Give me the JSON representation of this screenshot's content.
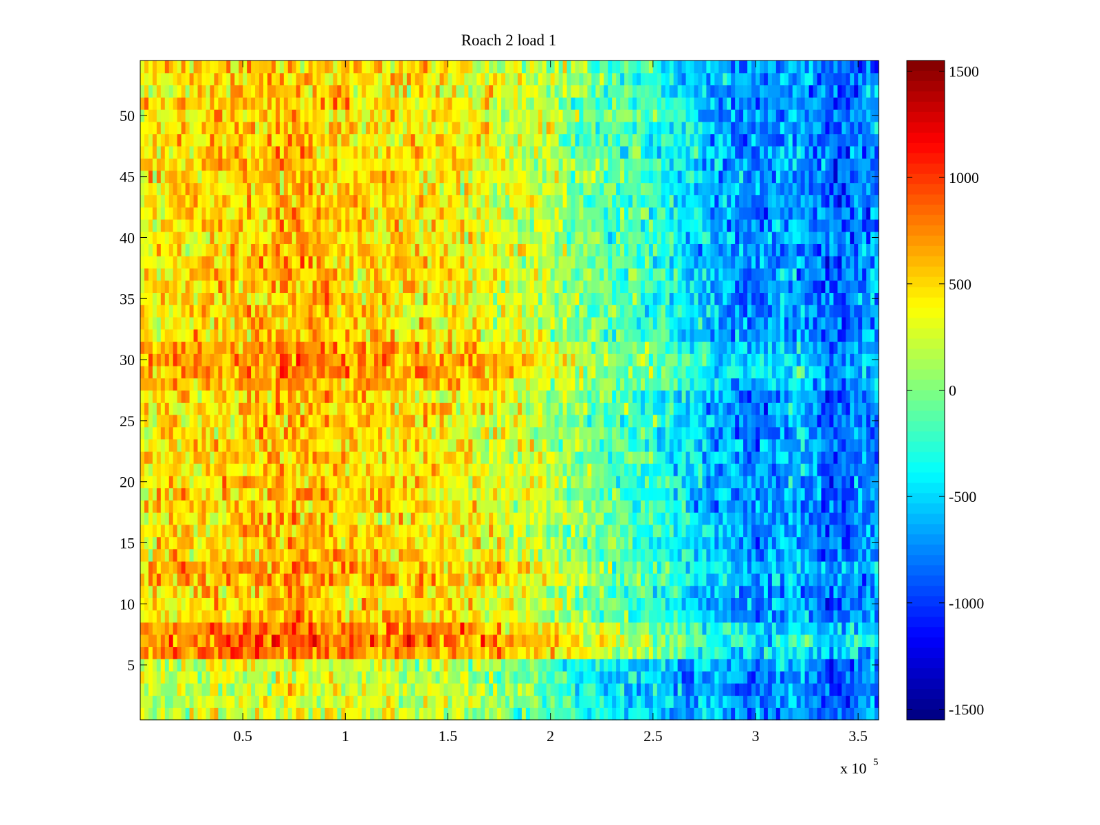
{
  "chart_data": {
    "type": "heatmap",
    "title": "Roach 2 load 1",
    "xlabel": "",
    "ylabel": "",
    "x_exponent_label": {
      "base": "x 10",
      "exponent": "5"
    },
    "xlim": [
      0,
      360000
    ],
    "ylim": [
      0.5,
      54.5
    ],
    "x_ticks": [
      {
        "value": 50000,
        "label": "0.5"
      },
      {
        "value": 100000,
        "label": "1"
      },
      {
        "value": 150000,
        "label": "1.5"
      },
      {
        "value": 200000,
        "label": "2"
      },
      {
        "value": 250000,
        "label": "2.5"
      },
      {
        "value": 300000,
        "label": "3"
      },
      {
        "value": 350000,
        "label": "3.5"
      }
    ],
    "y_ticks": [
      {
        "value": 5,
        "label": "5"
      },
      {
        "value": 10,
        "label": "10"
      },
      {
        "value": 15,
        "label": "15"
      },
      {
        "value": 20,
        "label": "20"
      },
      {
        "value": 25,
        "label": "25"
      },
      {
        "value": 30,
        "label": "30"
      },
      {
        "value": 35,
        "label": "35"
      },
      {
        "value": 40,
        "label": "40"
      },
      {
        "value": 45,
        "label": "45"
      },
      {
        "value": 50,
        "label": "50"
      }
    ],
    "rows": 54,
    "columns": 180,
    "colormap": "jet",
    "clim": [
      -1550,
      1550
    ],
    "colorbar_ticks": [
      {
        "value": 1500,
        "label": "1500"
      },
      {
        "value": 1000,
        "label": "1000"
      },
      {
        "value": 500,
        "label": "500"
      },
      {
        "value": 0,
        "label": "0"
      },
      {
        "value": -500,
        "label": "-500"
      },
      {
        "value": -1000,
        "label": "-1000"
      },
      {
        "value": -1500,
        "label": "-1500"
      }
    ],
    "column_trend": {
      "description": "approximate mean value per x position (x in data units)",
      "x": [
        0,
        25000,
        50000,
        75000,
        100000,
        125000,
        150000,
        175000,
        200000,
        225000,
        250000,
        275000,
        300000,
        320000,
        337000,
        360000
      ],
      "values": [
        420,
        480,
        520,
        600,
        520,
        480,
        420,
        300,
        150,
        -80,
        -250,
        -550,
        -800,
        -600,
        -900,
        -700
      ]
    },
    "row_modifiers": {
      "description": "approximate additive offset for horizontal bands (row index in data units)",
      "rows": [
        1,
        2,
        3,
        4,
        5,
        6,
        7,
        8,
        28,
        29,
        30,
        31,
        12,
        13
      ],
      "offsets": [
        -250,
        -250,
        -280,
        -300,
        -250,
        300,
        350,
        280,
        150,
        220,
        220,
        150,
        120,
        150
      ]
    },
    "noise_amplitude": 380
  }
}
